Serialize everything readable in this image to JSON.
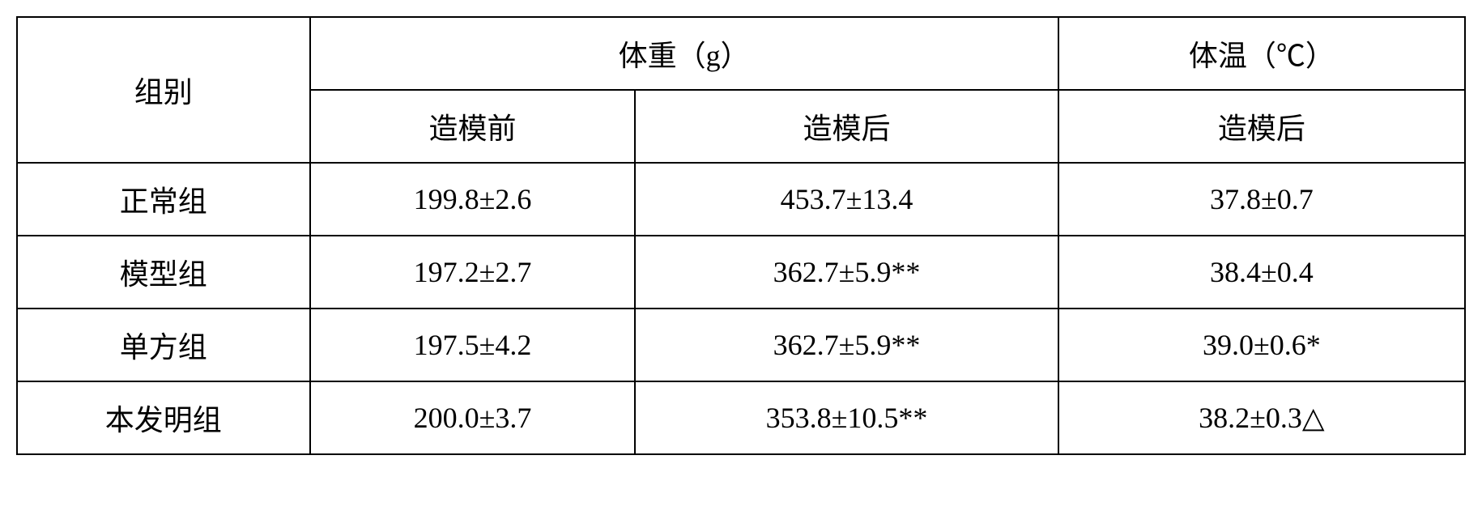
{
  "table": {
    "headers": {
      "group": "组别",
      "weight": "体重（g）",
      "temperature": "体温（℃）",
      "weight_before": "造模前",
      "weight_after": "造模后",
      "temp_after": "造模后"
    },
    "rows": [
      {
        "group": "正常组",
        "weight_before": "199.8±2.6",
        "weight_after": "453.7±13.4",
        "temp_after": "37.8±0.7"
      },
      {
        "group": "模型组",
        "weight_before": "197.2±2.7",
        "weight_after": "362.7±5.9**",
        "temp_after": "38.4±0.4"
      },
      {
        "group": "单方组",
        "weight_before": "197.5±4.2",
        "weight_after": "362.7±5.9**",
        "temp_after": "39.0±0.6*"
      },
      {
        "group": "本发明组",
        "weight_before": "200.0±3.7",
        "weight_after": "353.8±10.5**",
        "temp_after": "38.2±0.3△"
      }
    ]
  }
}
